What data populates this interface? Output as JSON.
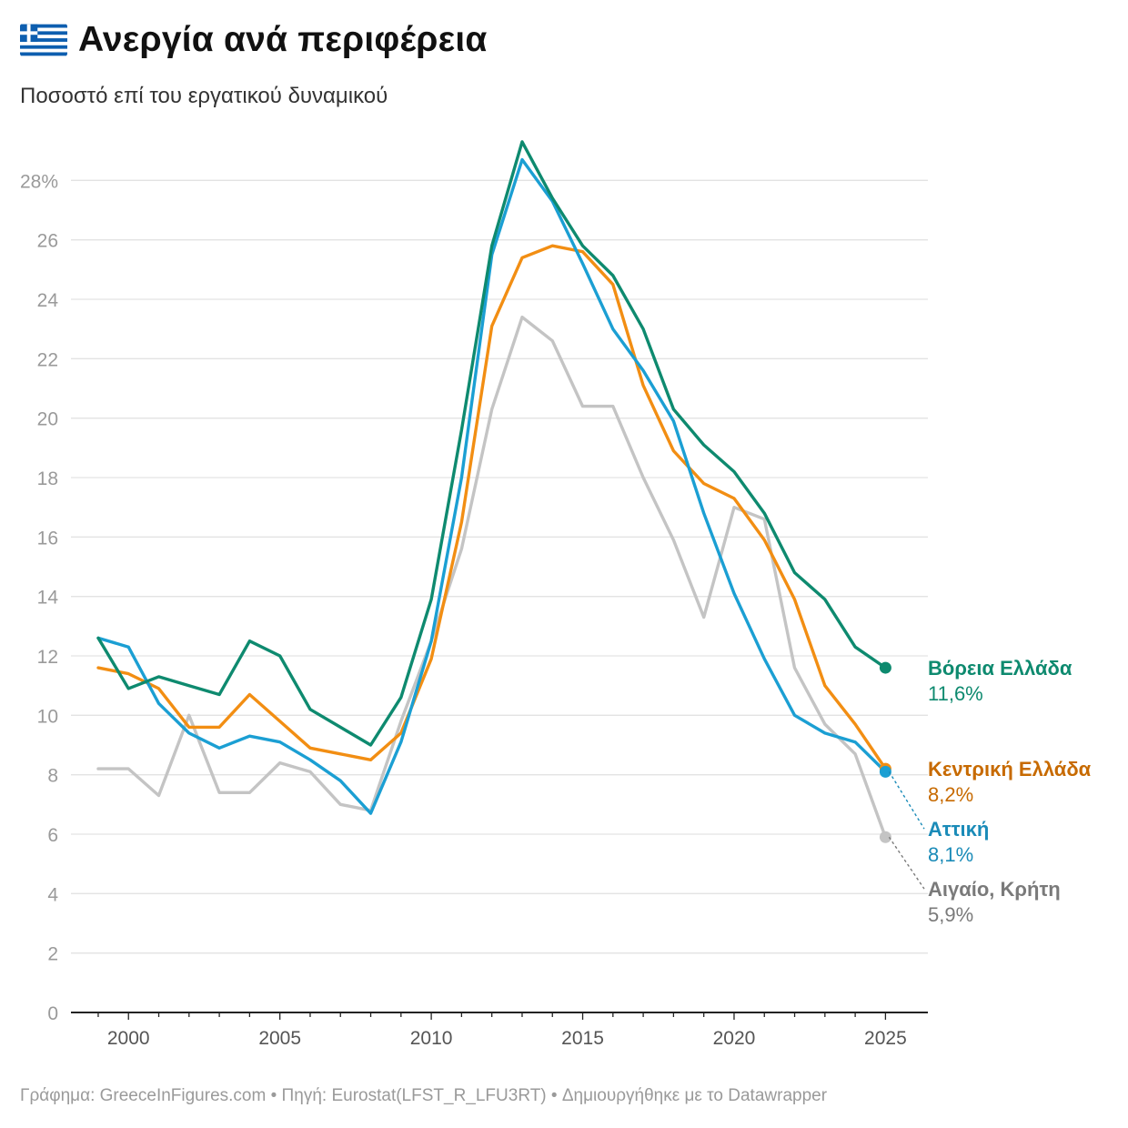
{
  "header": {
    "flag_icon": "greek-flag-icon",
    "title": "Ανεργία ανά περιφέρεια",
    "subtitle": "Ποσοστό επί του εργατικού δυναμικού"
  },
  "chart_data": {
    "type": "line",
    "title": "Ανεργία ανά περιφέρεια",
    "subtitle": "Ποσοστό επί του εργατικού δυναμικού",
    "xlabel": "",
    "ylabel": "",
    "xlim": [
      1998.1,
      2026.4
    ],
    "ylim": [
      0,
      30
    ],
    "x_ticks": [
      2000,
      2005,
      2010,
      2015,
      2020,
      2025
    ],
    "y_ticks": [
      0,
      2,
      4,
      6,
      8,
      10,
      12,
      14,
      16,
      18,
      20,
      22,
      24,
      26,
      28
    ],
    "y_tick_labels": [
      "0",
      "2",
      "4",
      "6",
      "8",
      "10",
      "12",
      "14",
      "16",
      "18",
      "20",
      "22",
      "24",
      "26",
      "28%"
    ],
    "grid": true,
    "x": [
      1999,
      2000,
      2001,
      2002,
      2003,
      2004,
      2005,
      2006,
      2007,
      2008,
      2009,
      2010,
      2011,
      2012,
      2013,
      2014,
      2015,
      2016,
      2017,
      2018,
      2019,
      2020,
      2021,
      2022,
      2023,
      2024,
      2025
    ],
    "series": [
      {
        "name": "Αιγαίο, Κρήτη",
        "color": "#c4c4c4",
        "label_color": "#7a7a7a",
        "end_label": "Αιγαίο, Κρήτη",
        "end_value_label": "5,9%",
        "values": [
          8.2,
          8.2,
          7.3,
          10.0,
          7.4,
          7.4,
          8.4,
          8.1,
          7.0,
          6.8,
          9.8,
          12.5,
          15.6,
          20.3,
          23.4,
          22.6,
          20.4,
          20.4,
          18.0,
          15.9,
          13.3,
          17.0,
          16.6,
          11.6,
          9.7,
          8.7,
          5.9
        ]
      },
      {
        "name": "Κεντρική Ελλάδα",
        "color": "#f28e13",
        "label_color": "#c76a00",
        "end_label": "Κεντρική Ελλάδα",
        "end_value_label": "8,2%",
        "values": [
          11.6,
          11.4,
          10.9,
          9.6,
          9.6,
          10.7,
          9.8,
          8.9,
          8.7,
          8.5,
          9.4,
          11.9,
          16.5,
          23.1,
          25.4,
          25.8,
          25.6,
          24.5,
          21.1,
          18.9,
          17.8,
          17.3,
          15.9,
          13.9,
          11.0,
          9.7,
          8.2
        ]
      },
      {
        "name": "Αττική",
        "color": "#1b9fd3",
        "label_color": "#1a8bb8",
        "end_label": "Αττική",
        "end_value_label": "8,1%",
        "values": [
          12.6,
          12.3,
          10.4,
          9.4,
          8.9,
          9.3,
          9.1,
          8.5,
          7.8,
          6.7,
          9.1,
          12.5,
          18.0,
          25.5,
          28.7,
          27.3,
          25.2,
          23.0,
          21.6,
          19.9,
          16.8,
          14.1,
          11.9,
          10.0,
          9.4,
          9.1,
          8.1
        ]
      },
      {
        "name": "Βόρεια Ελλάδα",
        "color": "#0e8a6f",
        "label_color": "#0e8a6f",
        "end_label": "Βόρεια Ελλάδα",
        "end_value_label": "11,6%",
        "values": [
          12.6,
          10.9,
          11.3,
          11.0,
          10.7,
          12.5,
          12.0,
          10.2,
          9.6,
          9.0,
          10.6,
          13.9,
          19.6,
          25.8,
          29.3,
          27.4,
          25.8,
          24.8,
          23.0,
          20.3,
          19.1,
          18.2,
          16.8,
          14.8,
          13.9,
          12.3,
          11.6
        ]
      }
    ]
  },
  "footer": {
    "credit": "Γράφημα: GreeceInFigures.com",
    "sep1": " • ",
    "source": "Πηγή: Eurostat(LFST_R_LFU3RT)",
    "sep2": " • ",
    "tool": "Δημιουργήθηκε με το Datawrapper"
  }
}
